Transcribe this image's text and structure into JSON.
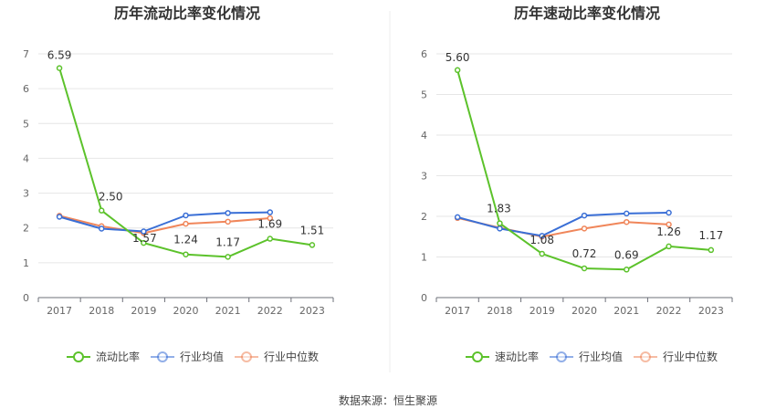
{
  "source_note": "数据来源：恒生聚源",
  "chart_data": [
    {
      "type": "line",
      "title": "历年流动比率变化情况",
      "x": [
        "2017",
        "2018",
        "2019",
        "2020",
        "2021",
        "2022",
        "2023"
      ],
      "ylim": [
        0,
        7
      ],
      "yticks": [
        "0",
        "1",
        "2",
        "3",
        "4",
        "5",
        "6",
        "7"
      ],
      "grid": true,
      "legend_position": "bottom",
      "series": [
        {
          "name": "流动比率",
          "color": "#5cc22b",
          "values": [
            6.59,
            2.5,
            1.57,
            1.24,
            1.17,
            1.69,
            1.51
          ],
          "labels": [
            "6.59",
            "2.50",
            "1.57",
            "1.24",
            "1.17",
            "1.69",
            "1.51"
          ]
        },
        {
          "name": "行业均值",
          "color": "#3a6fd6",
          "values": [
            2.32,
            1.98,
            1.9,
            2.36,
            2.43,
            2.45,
            null
          ]
        },
        {
          "name": "行业中位数",
          "color": "#f0865a",
          "values": [
            2.35,
            2.05,
            1.85,
            2.12,
            2.18,
            2.28,
            null
          ]
        }
      ]
    },
    {
      "type": "line",
      "title": "历年速动比率变化情况",
      "x": [
        "2017",
        "2018",
        "2019",
        "2020",
        "2021",
        "2022",
        "2023"
      ],
      "ylim": [
        0,
        6
      ],
      "yticks": [
        "0",
        "1",
        "2",
        "3",
        "4",
        "5",
        "6"
      ],
      "grid": true,
      "legend_position": "bottom",
      "series": [
        {
          "name": "速动比率",
          "color": "#5cc22b",
          "values": [
            5.6,
            1.83,
            1.08,
            0.72,
            0.69,
            1.26,
            1.17
          ],
          "labels": [
            "5.60",
            "1.83",
            "1.08",
            "0.72",
            "0.69",
            "1.26",
            "1.17"
          ]
        },
        {
          "name": "行业均值",
          "color": "#3a6fd6",
          "values": [
            1.98,
            1.7,
            1.52,
            2.02,
            2.07,
            2.09,
            null
          ]
        },
        {
          "name": "行业中位数",
          "color": "#f0865a",
          "values": [
            1.96,
            1.72,
            1.5,
            1.7,
            1.86,
            1.8,
            null
          ]
        }
      ]
    }
  ]
}
